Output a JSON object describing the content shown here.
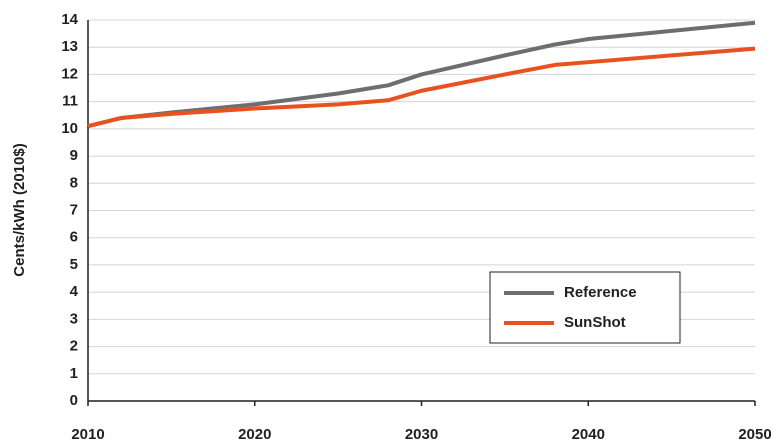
{
  "chart_data": {
    "type": "line",
    "y_label": "Cents/kWh (2010$)",
    "x": [
      2010,
      2012,
      2015,
      2020,
      2025,
      2028,
      2030,
      2035,
      2038,
      2040,
      2045,
      2050
    ],
    "series": [
      {
        "name": "Reference",
        "color": "#6d6e71",
        "values": [
          10.1,
          10.4,
          10.6,
          10.9,
          11.3,
          11.6,
          12.0,
          12.7,
          13.1,
          13.3,
          13.6,
          13.9
        ]
      },
      {
        "name": "SunShot",
        "color": "#e8521f",
        "values": [
          10.1,
          10.4,
          10.55,
          10.75,
          10.9,
          11.05,
          11.4,
          12.0,
          12.35,
          12.45,
          12.7,
          12.95
        ]
      }
    ],
    "xlim": [
      2010,
      2050
    ],
    "xticks": [
      2010,
      2020,
      2030,
      2040,
      2050
    ],
    "ylim": [
      0,
      14
    ],
    "yticks": [
      0,
      1,
      2,
      3,
      4,
      5,
      6,
      7,
      8,
      9,
      10,
      11,
      12,
      13,
      14
    ],
    "grid": true,
    "legend": "lower right"
  }
}
